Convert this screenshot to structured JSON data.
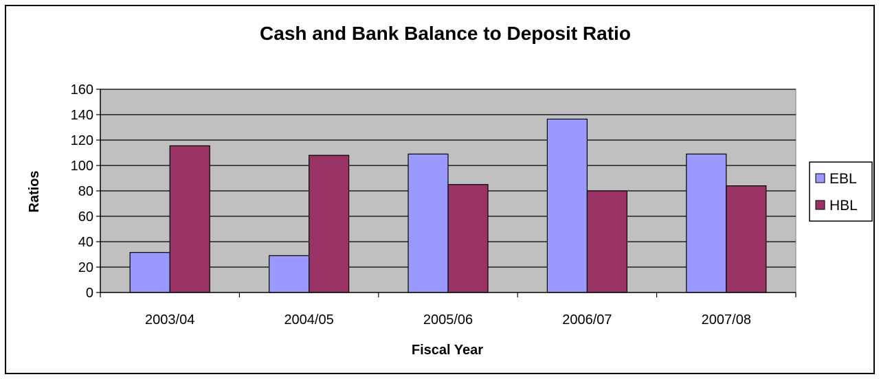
{
  "chart_data": {
    "type": "bar",
    "title": "Cash and Bank Balance to Deposit Ratio",
    "xlabel": "Fiscal Year",
    "ylabel": "Ratios",
    "categories": [
      "2003/04",
      "2004/05",
      "2005/06",
      "2006/07",
      "2007/08"
    ],
    "series": [
      {
        "name": "EBL",
        "values": [
          31.5,
          29,
          109,
          136.5,
          109
        ],
        "color": "#9999ff"
      },
      {
        "name": "HBL",
        "values": [
          115.5,
          108,
          85,
          80,
          84
        ],
        "color": "#993366"
      }
    ],
    "ylim": [
      0,
      160
    ],
    "yticks": [
      "0",
      "20",
      "40",
      "60",
      "80",
      "100",
      "120",
      "140",
      "160"
    ],
    "grid": true,
    "legend": "right",
    "plot_background": "#c0c0c0"
  }
}
